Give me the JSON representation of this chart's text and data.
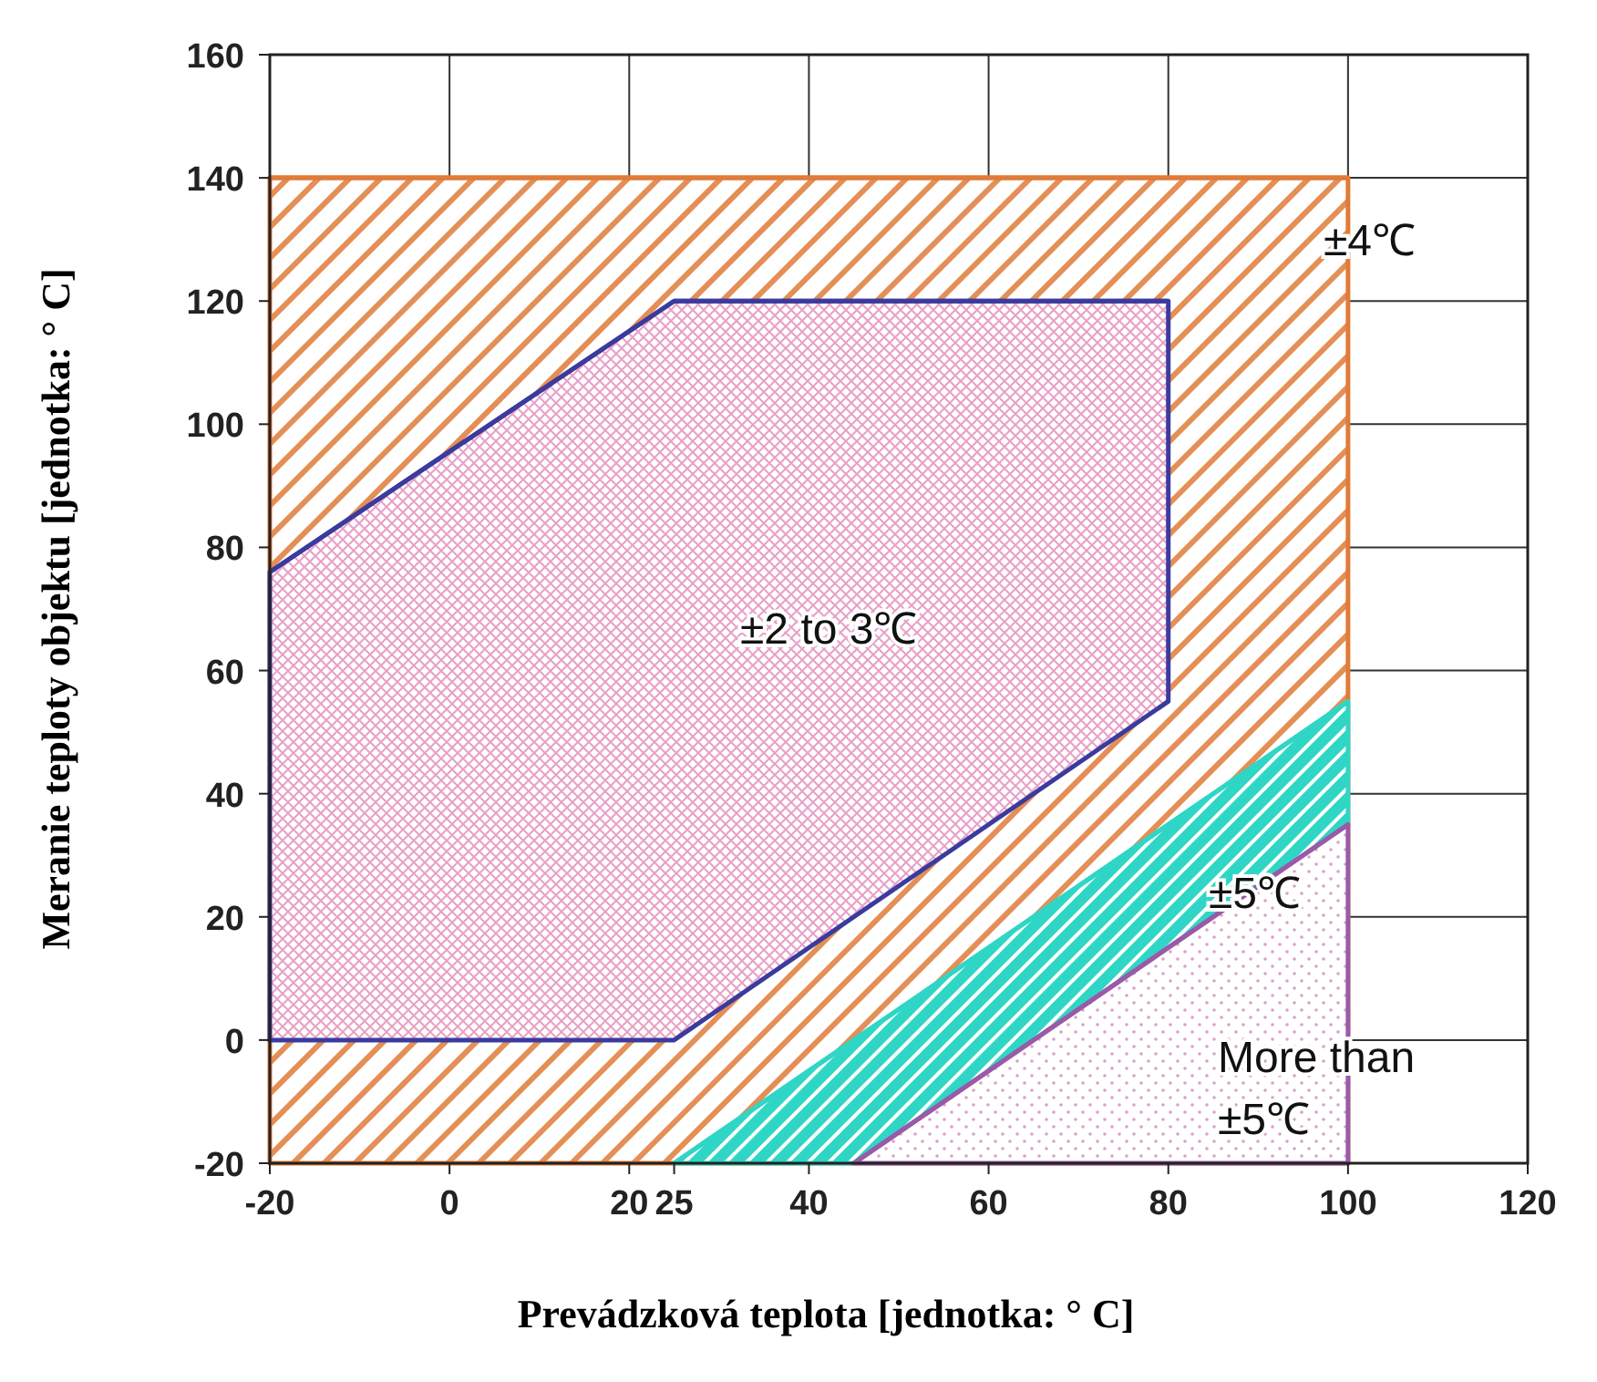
{
  "chart_data": {
    "type": "line",
    "xlabel": "Prevádzková teplota [jednotka: ° C]",
    "ylabel": "Meranie  teploty objektu [jednotka: ° C]",
    "xlim": [
      -20,
      120
    ],
    "xticks": [
      -20,
      0,
      20,
      25,
      40,
      60,
      80,
      100,
      120
    ],
    "ylim": [
      -20,
      160
    ],
    "yticks": [
      -20,
      0,
      20,
      40,
      60,
      80,
      100,
      120,
      140,
      160
    ],
    "grid": true,
    "marker": "none",
    "line_style": "solid",
    "series": [
      {
        "color": "#e07b39",
        "x": [
          -20,
          100
        ],
        "values": [
          140,
          140
        ],
        "lower": [
          -20,
          -20
        ],
        "upper": [
          140,
          140
        ]
      },
      {
        "color": "#3b3b9e",
        "x": [
          -20,
          25,
          80
        ],
        "values": [
          76,
          120,
          120
        ],
        "lower": [
          0,
          0,
          55
        ],
        "upper": [
          76,
          120,
          120
        ]
      },
      {
        "color": "#2fd6c6",
        "x": [
          25,
          45,
          100
        ],
        "values": [
          -20,
          0,
          55
        ],
        "lower": [
          -20,
          -20,
          35
        ],
        "upper": [
          -20,
          0,
          55
        ]
      },
      {
        "color": "#9a5aa8",
        "x": [
          45,
          100
        ],
        "values": [
          -20,
          35
        ],
        "lower": [
          -20,
          -20
        ],
        "upper": [
          -20,
          35
        ]
      }
    ],
    "annotations": [
      "±4℃",
      "±2 to 3℃",
      "±5℃",
      "More than\n±5℃"
    ]
  }
}
